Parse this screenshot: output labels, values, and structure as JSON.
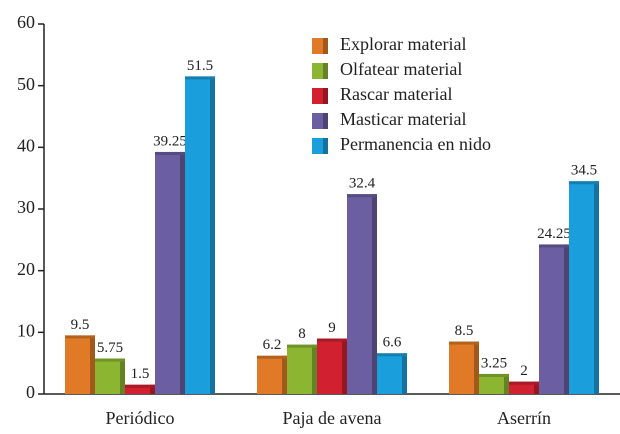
{
  "chart_data": {
    "type": "bar",
    "categories": [
      "Periódico",
      "Paja de avena",
      "Aserrín"
    ],
    "series": [
      {
        "name": "Explorar material",
        "color": "#e07a26",
        "values": [
          9.5,
          6.2,
          8.5
        ]
      },
      {
        "name": "Olfatear material",
        "color": "#8cb632",
        "values": [
          5.75,
          8,
          3.25
        ]
      },
      {
        "name": "Rascar material",
        "color": "#d1202f",
        "values": [
          1.5,
          9,
          2
        ]
      },
      {
        "name": "Masticar material",
        "color": "#6b5fa1",
        "values": [
          39.25,
          32.4,
          24.25
        ]
      },
      {
        "name": "Permanencia en nido",
        "color": "#1a9fdc",
        "values": [
          51.5,
          6.6,
          34.5
        ]
      }
    ],
    "ylim": [
      0,
      60
    ],
    "yticks": [
      0,
      10,
      20,
      30,
      40,
      50,
      60
    ],
    "grid": false,
    "legend": "top-right"
  }
}
